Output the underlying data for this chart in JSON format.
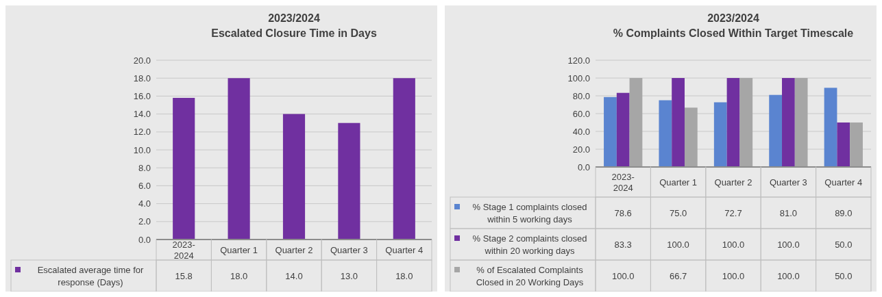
{
  "chart_data": [
    {
      "type": "bar",
      "title": "2023/2024",
      "subtitle": "Escalated Closure Time in Days",
      "categories": [
        "2023-2024",
        "Quarter 1",
        "Quarter 2",
        "Quarter 3",
        "Quarter 4"
      ],
      "series": [
        {
          "name": "Escalated average time for response (Days)",
          "color": "#7030a0",
          "values": [
            15.8,
            18.0,
            14.0,
            13.0,
            18.0
          ],
          "value_labels": [
            "15.8",
            "18.0",
            "14.0",
            "13.0",
            "18.0"
          ]
        }
      ],
      "ylim": [
        0,
        20
      ],
      "yticks": [
        {
          "value": 0,
          "label": "0.0"
        },
        {
          "value": 2,
          "label": "2.0"
        },
        {
          "value": 4,
          "label": "4.0"
        },
        {
          "value": 6,
          "label": "6.0"
        },
        {
          "value": 8,
          "label": "8.0"
        },
        {
          "value": 10,
          "label": "10.0"
        },
        {
          "value": 12,
          "label": "12.0"
        },
        {
          "value": 14,
          "label": "14.0"
        },
        {
          "value": 16,
          "label": "16.0"
        },
        {
          "value": 18,
          "label": "18.0"
        },
        {
          "value": 20,
          "label": "20.0"
        }
      ],
      "grid": "y",
      "legend": "bottom"
    },
    {
      "type": "bar",
      "title": "2023/2024",
      "subtitle": "% Complaints Closed Within Target Timescale",
      "categories": [
        "2023-2024",
        "Quarter 1",
        "Quarter 2",
        "Quarter 3",
        "Quarter 4"
      ],
      "series": [
        {
          "name": "% Stage 1 complaints closed within 5 working days",
          "color": "#5a84d0",
          "values": [
            78.6,
            75.0,
            72.7,
            81.0,
            89.0
          ],
          "value_labels": [
            "78.6",
            "75.0",
            "72.7",
            "81.0",
            "89.0"
          ]
        },
        {
          "name": "% Stage 2 complaints closed within 20 working days",
          "color": "#7030a0",
          "values": [
            83.3,
            100.0,
            100.0,
            100.0,
            50.0
          ],
          "value_labels": [
            "83.3",
            "100.0",
            "100.0",
            "100.0",
            "50.0"
          ]
        },
        {
          "name": "% of Escalated Complaints Closed in 20 Working Days",
          "color": "#a6a6a6",
          "values": [
            100.0,
            66.7,
            100.0,
            100.0,
            50.0
          ],
          "value_labels": [
            "100.0",
            "66.7",
            "100.0",
            "100.0",
            "50.0"
          ]
        }
      ],
      "ylim": [
        0,
        120
      ],
      "yticks": [
        {
          "value": 0,
          "label": "0.0"
        },
        {
          "value": 20,
          "label": "20.0"
        },
        {
          "value": 40,
          "label": "40.0"
        },
        {
          "value": 60,
          "label": "60.0"
        },
        {
          "value": 80,
          "label": "80.0"
        },
        {
          "value": 100,
          "label": "100.0"
        },
        {
          "value": 120,
          "label": "120.0"
        }
      ],
      "grid": "y",
      "legend": "bottom"
    }
  ]
}
